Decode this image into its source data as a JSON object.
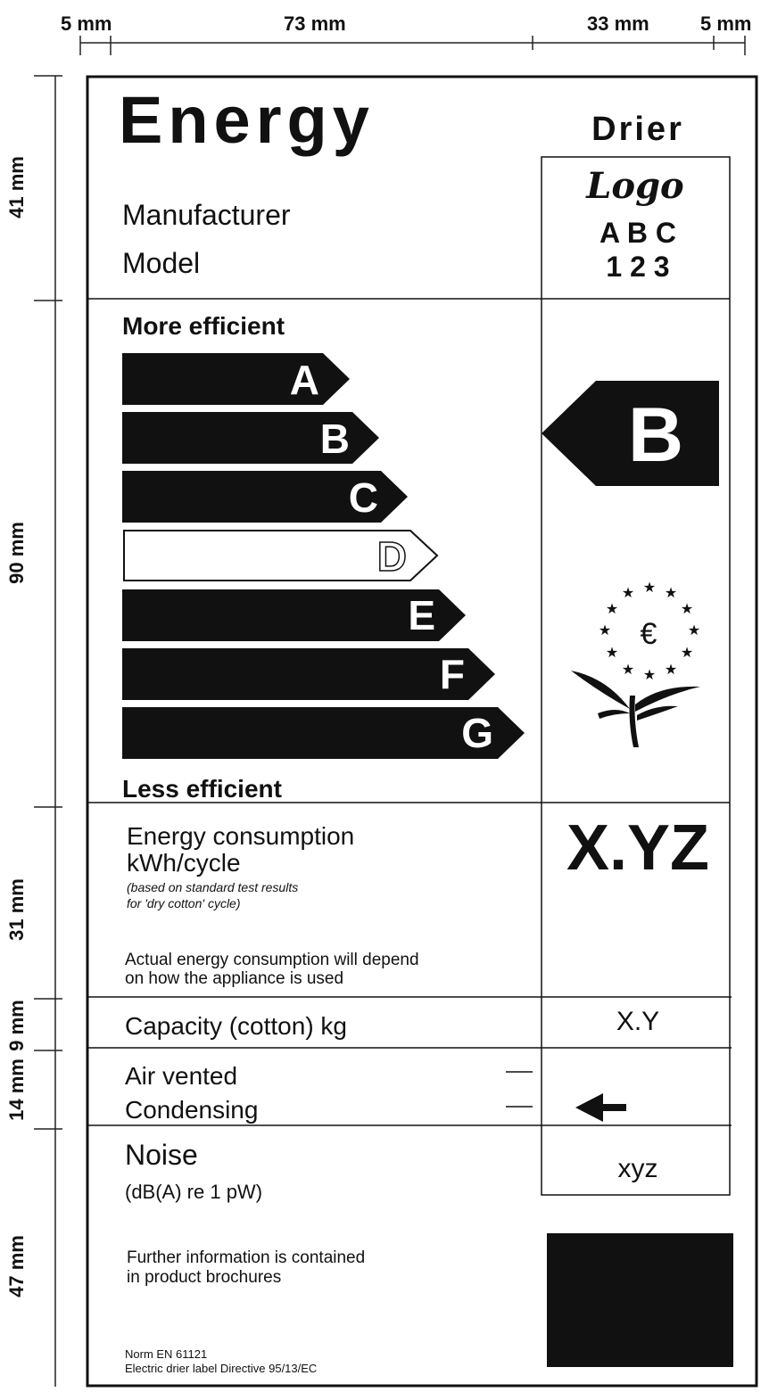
{
  "dimensions": {
    "top": [
      "5 mm",
      "73 mm",
      "33 mm",
      "5 mm"
    ],
    "left": [
      "41 mm",
      "90 mm",
      "31 mm",
      "9 mm",
      "14 mm",
      "47 mm"
    ]
  },
  "header": {
    "title": "Energy",
    "appliance": "Drier",
    "manufacturer_label": "Manufacturer",
    "model_label": "Model",
    "logo": "Logo",
    "manufacturer_value": "A B C",
    "model_value": "1 2 3"
  },
  "scale": {
    "top_label": "More efficient",
    "bottom_label": "Less efficient",
    "classes": [
      "A",
      "B",
      "C",
      "D",
      "E",
      "F",
      "G"
    ],
    "rating": "B"
  },
  "consumption": {
    "label": "Energy consumption",
    "unit": "kWh/cycle",
    "note_1": "(based on standard test results",
    "note_2": "for 'dry cotton' cycle)",
    "value": "X.YZ",
    "remark_1": "Actual energy consumption will depend",
    "remark_2": "on how the appliance is used"
  },
  "capacity": {
    "label": "Capacity (cotton) kg",
    "value": "X.Y"
  },
  "type": {
    "option_1": "Air vented",
    "option_2": "Condensing"
  },
  "noise": {
    "label": "Noise",
    "unit": "(dB(A) re 1 pW)",
    "value": "xyz"
  },
  "footer": {
    "info_1": "Further information is contained",
    "info_2": "in product brochures",
    "norm": "Norm EN 61121",
    "directive": "Electric drier label Directive 95/13/EC"
  }
}
